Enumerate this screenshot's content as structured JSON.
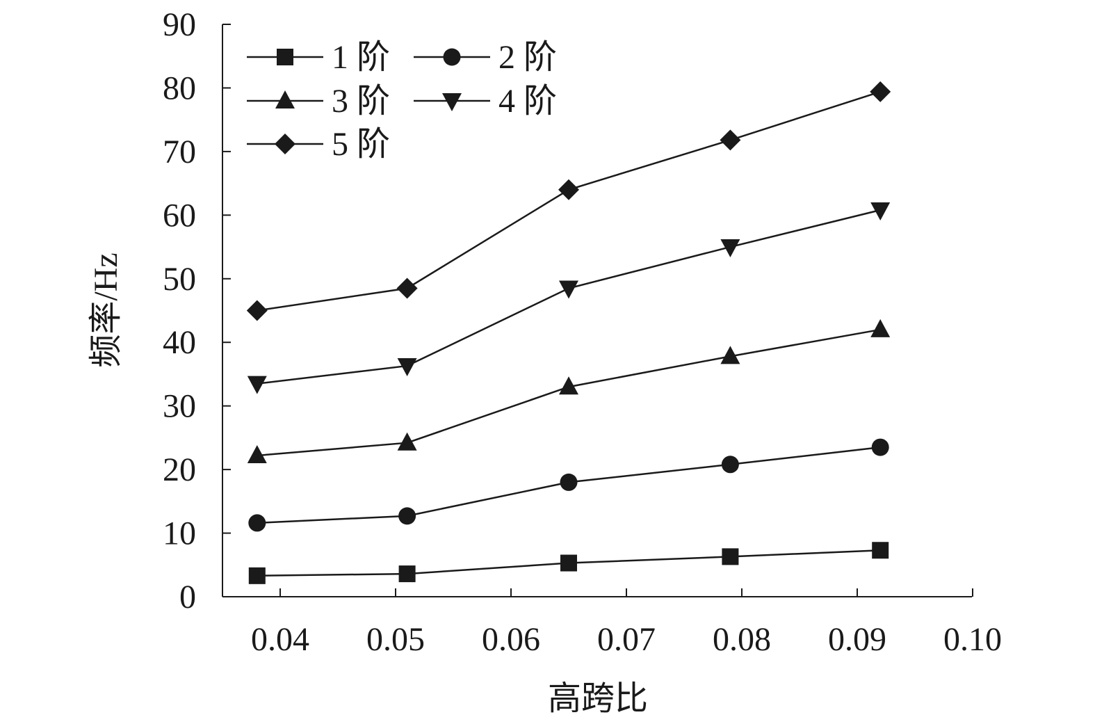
{
  "chart_data": {
    "type": "line",
    "title": "",
    "xlabel": "高跨比",
    "ylabel": "频率/Hz",
    "xlim": [
      0.035,
      0.1
    ],
    "ylim": [
      0,
      90
    ],
    "x_ticks": [
      "0.04",
      "0.05",
      "0.06",
      "0.07",
      "0.08",
      "0.09",
      "0.10"
    ],
    "y_ticks": [
      "0",
      "10",
      "20",
      "30",
      "40",
      "50",
      "60",
      "70",
      "80",
      "90"
    ],
    "x": [
      0.038,
      0.051,
      0.065,
      0.079,
      0.092
    ],
    "grid": false,
    "legend_position": "top-left",
    "series": [
      {
        "name": "1 阶",
        "marker": "square",
        "values": [
          3.3,
          3.6,
          5.3,
          6.3,
          7.3
        ]
      },
      {
        "name": "2 阶",
        "marker": "circle",
        "values": [
          11.6,
          12.7,
          18.0,
          20.8,
          23.5
        ]
      },
      {
        "name": "3 阶",
        "marker": "triangle-up",
        "values": [
          22.2,
          24.2,
          33.0,
          37.8,
          42.0
        ]
      },
      {
        "name": "4 阶",
        "marker": "triangle-down",
        "values": [
          33.5,
          36.3,
          48.5,
          55.0,
          60.8
        ]
      },
      {
        "name": "5 阶",
        "marker": "diamond",
        "values": [
          45.0,
          48.5,
          64.0,
          71.8,
          79.4
        ]
      }
    ],
    "colors": {
      "line": "#1a1a1a",
      "marker": "#1a1a1a"
    }
  }
}
